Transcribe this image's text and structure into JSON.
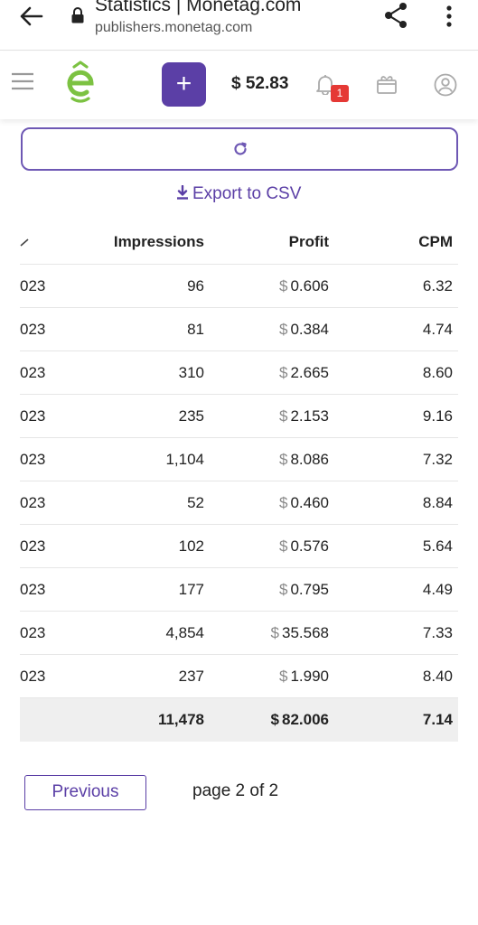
{
  "browser": {
    "title": "Statistics | Monetag.com",
    "url": "publishers.monetag.com"
  },
  "header": {
    "balance": "$ 52.83",
    "add_label": "+",
    "notification_count": "1"
  },
  "toolbar": {
    "export_label": "Export to CSV"
  },
  "table": {
    "columns": [
      "Impressions",
      "Profit",
      "CPM"
    ],
    "rows": [
      {
        "date": "023",
        "impressions": "96",
        "profit": "0.606",
        "cpm": "6.32"
      },
      {
        "date": "023",
        "impressions": "81",
        "profit": "0.384",
        "cpm": "4.74"
      },
      {
        "date": "023",
        "impressions": "310",
        "profit": "2.665",
        "cpm": "8.60"
      },
      {
        "date": "023",
        "impressions": "235",
        "profit": "2.153",
        "cpm": "9.16"
      },
      {
        "date": "023",
        "impressions": "1,104",
        "profit": "8.086",
        "cpm": "7.32"
      },
      {
        "date": "023",
        "impressions": "52",
        "profit": "0.460",
        "cpm": "8.84"
      },
      {
        "date": "023",
        "impressions": "102",
        "profit": "0.576",
        "cpm": "5.64"
      },
      {
        "date": "023",
        "impressions": "177",
        "profit": "0.795",
        "cpm": "4.49"
      },
      {
        "date": "023",
        "impressions": "4,854",
        "profit": "35.568",
        "cpm": "7.33"
      },
      {
        "date": "023",
        "impressions": "237",
        "profit": "1.990",
        "cpm": "8.40"
      }
    ],
    "currency": "$",
    "total": {
      "impressions": "11,478",
      "profit": "82.006",
      "cpm": "7.14"
    }
  },
  "pagination": {
    "previous_label": "Previous",
    "page_info": "page 2 of 2"
  },
  "colors": {
    "accent": "#5b3fa6",
    "logo_green": "#7cc242",
    "badge_red": "#e53935"
  },
  "icons": [
    "back-arrow-icon",
    "lock-icon",
    "share-icon",
    "more-vert-icon",
    "menu-icon",
    "logo-icon",
    "plus-icon",
    "bell-icon",
    "gift-icon",
    "user-icon",
    "refresh-icon",
    "download-icon",
    "sort-icon"
  ]
}
